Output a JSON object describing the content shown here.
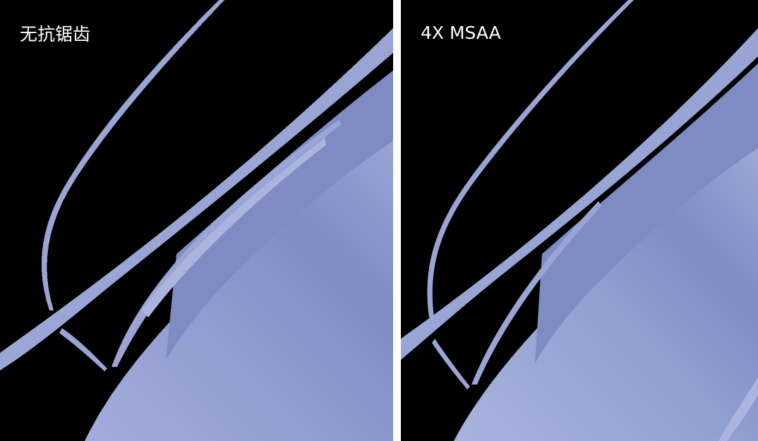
{
  "panels": {
    "left": {
      "label": "无抗锯齿"
    },
    "right": {
      "label": "4X MSAA"
    }
  },
  "colors": {
    "background": "#000000",
    "divider": "#ffffff",
    "strand_light": "#aab4de",
    "strand_mid": "#98a3d3",
    "strand_dark": "#7f8cc4",
    "label_text": "#ffffff"
  }
}
